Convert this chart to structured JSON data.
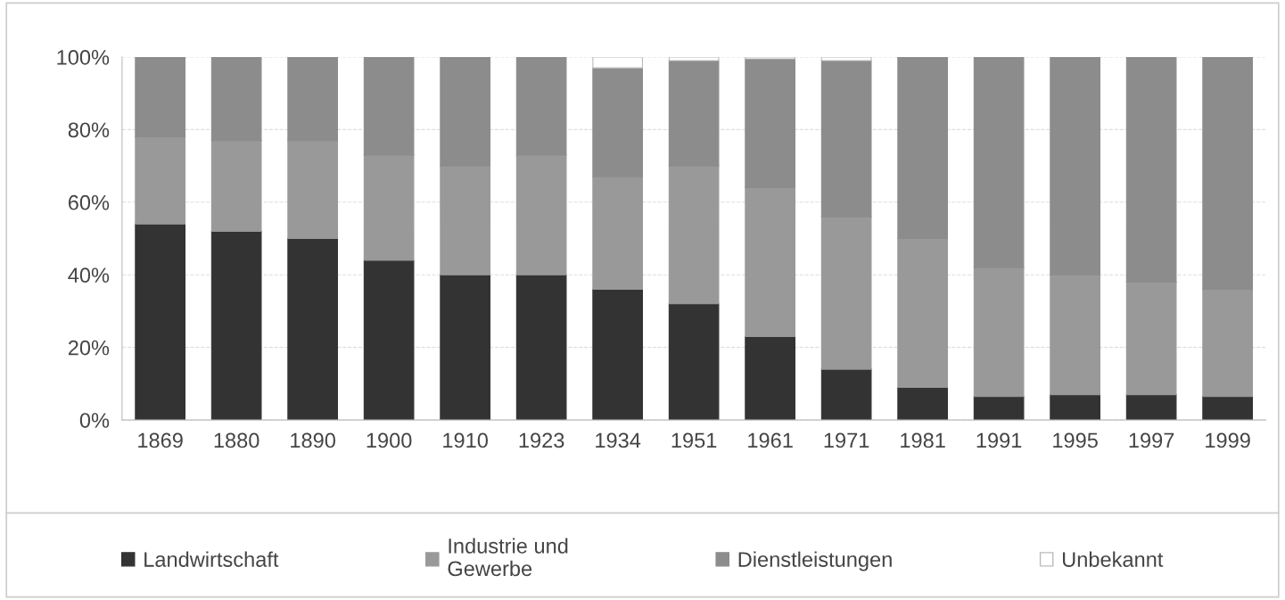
{
  "chart_data": {
    "type": "bar",
    "stacked": true,
    "categories": [
      "1869",
      "1880",
      "1890",
      "1900",
      "1910",
      "1923",
      "1934",
      "1951",
      "1961",
      "1971",
      "1981",
      "1991",
      "1995",
      "1997",
      "1999"
    ],
    "series": [
      {
        "name": "Landwirtschaft",
        "color": "#333333",
        "values": [
          54,
          52,
          50,
          44,
          40,
          40,
          36,
          32,
          23,
          14,
          9,
          6.5,
          7,
          7,
          6.5
        ]
      },
      {
        "name": "Industrie und Gewerbe",
        "color": "#999999",
        "values": [
          24,
          25,
          27,
          29,
          30,
          33,
          31,
          38,
          41,
          42,
          41,
          35.5,
          33,
          31,
          29.5
        ]
      },
      {
        "name": "Dienstleistungen",
        "color": "#8c8c8c",
        "values": [
          22,
          23,
          23,
          27,
          30,
          27,
          30,
          29,
          35.5,
          43,
          50,
          58,
          60,
          62,
          64
        ]
      },
      {
        "name": "Unbekannt",
        "color": "#ffffff",
        "values": [
          0,
          0,
          0,
          0,
          0,
          0,
          3,
          1,
          0.5,
          1,
          0,
          0,
          0,
          0,
          0
        ]
      }
    ],
    "ylim": [
      0,
      100
    ],
    "yticks": [
      {
        "value": 0,
        "label": "0%"
      },
      {
        "value": 20,
        "label": "20%"
      },
      {
        "value": 40,
        "label": "40%"
      },
      {
        "value": 60,
        "label": "60%"
      },
      {
        "value": 80,
        "label": "80%"
      },
      {
        "value": 100,
        "label": "100%"
      }
    ],
    "grid": "y",
    "legend": "bottom"
  }
}
